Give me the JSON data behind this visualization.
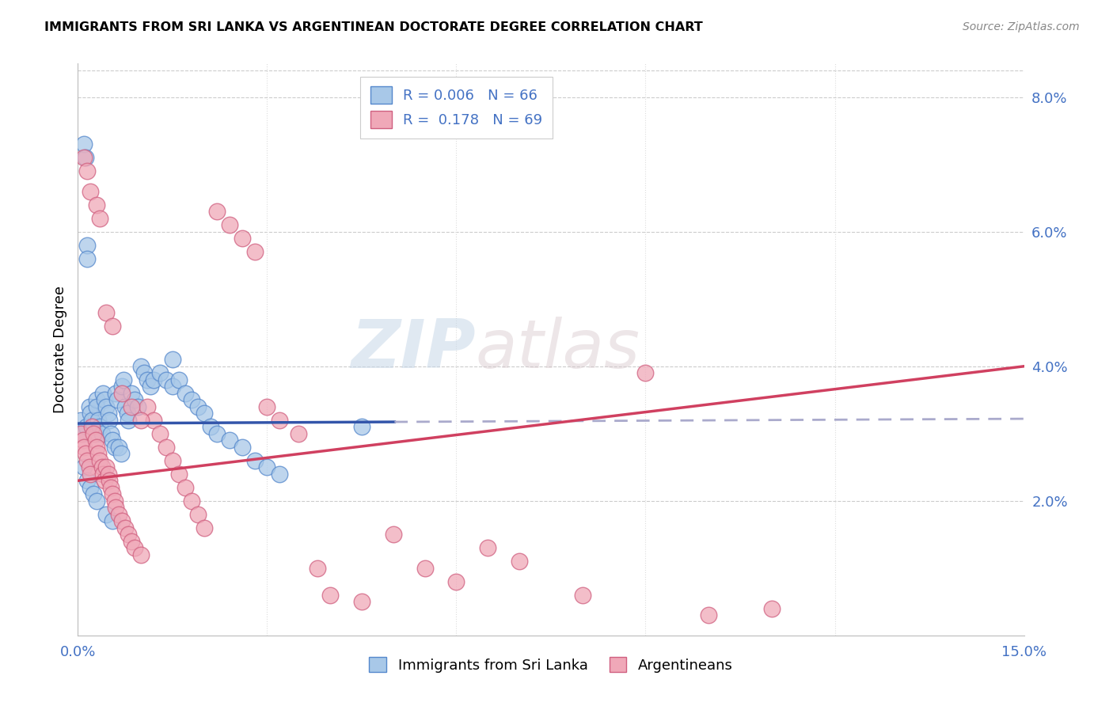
{
  "title": "IMMIGRANTS FROM SRI LANKA VS ARGENTINEAN DOCTORATE DEGREE CORRELATION CHART",
  "source": "Source: ZipAtlas.com",
  "ylabel": "Doctorate Degree",
  "xlim": [
    0.0,
    15.0
  ],
  "ylim": [
    0.0,
    8.5
  ],
  "blue_color": "#a8c8e8",
  "pink_color": "#f0a8b8",
  "blue_edge_color": "#5588cc",
  "pink_edge_color": "#d06080",
  "blue_line_color": "#3355aa",
  "pink_line_color": "#d04060",
  "blue_scatter_x": [
    0.05,
    0.08,
    0.1,
    0.12,
    0.13,
    0.15,
    0.15,
    0.18,
    0.2,
    0.22,
    0.25,
    0.28,
    0.3,
    0.3,
    0.32,
    0.35,
    0.38,
    0.4,
    0.42,
    0.45,
    0.48,
    0.5,
    0.52,
    0.55,
    0.58,
    0.6,
    0.62,
    0.65,
    0.68,
    0.7,
    0.72,
    0.75,
    0.78,
    0.8,
    0.85,
    0.9,
    0.95,
    1.0,
    1.05,
    1.1,
    1.15,
    1.2,
    1.3,
    1.4,
    1.5,
    1.6,
    1.7,
    1.8,
    1.9,
    2.0,
    2.1,
    2.2,
    2.4,
    2.6,
    2.8,
    3.0,
    3.2,
    0.1,
    0.15,
    0.2,
    0.25,
    0.3,
    0.45,
    0.55,
    1.5,
    4.5
  ],
  "blue_scatter_y": [
    3.2,
    3.0,
    7.3,
    7.1,
    3.1,
    5.8,
    5.6,
    3.4,
    3.3,
    3.2,
    3.1,
    3.0,
    3.5,
    3.4,
    3.2,
    3.1,
    3.0,
    3.6,
    3.5,
    3.4,
    3.3,
    3.2,
    3.0,
    2.9,
    2.8,
    3.6,
    3.5,
    2.8,
    2.7,
    3.7,
    3.8,
    3.4,
    3.3,
    3.2,
    3.6,
    3.5,
    3.4,
    4.0,
    3.9,
    3.8,
    3.7,
    3.8,
    3.9,
    3.8,
    3.7,
    3.8,
    3.6,
    3.5,
    3.4,
    3.3,
    3.1,
    3.0,
    2.9,
    2.8,
    2.6,
    2.5,
    2.4,
    2.5,
    2.3,
    2.2,
    2.1,
    2.0,
    1.8,
    1.7,
    4.1,
    3.1
  ],
  "pink_scatter_x": [
    0.05,
    0.08,
    0.1,
    0.12,
    0.15,
    0.18,
    0.2,
    0.22,
    0.25,
    0.28,
    0.3,
    0.32,
    0.35,
    0.38,
    0.4,
    0.42,
    0.45,
    0.48,
    0.5,
    0.52,
    0.55,
    0.58,
    0.6,
    0.65,
    0.7,
    0.75,
    0.8,
    0.85,
    0.9,
    1.0,
    1.1,
    1.2,
    1.3,
    1.4,
    1.5,
    1.6,
    1.7,
    1.8,
    1.9,
    2.0,
    2.2,
    2.4,
    2.6,
    2.8,
    3.0,
    3.2,
    3.5,
    3.8,
    4.0,
    4.5,
    5.0,
    5.5,
    6.0,
    6.5,
    7.0,
    8.0,
    9.0,
    10.0,
    11.0,
    0.1,
    0.15,
    0.2,
    0.3,
    0.35,
    0.45,
    0.55,
    0.7,
    0.85,
    1.0
  ],
  "pink_scatter_y": [
    3.0,
    2.9,
    2.8,
    2.7,
    2.6,
    2.5,
    2.4,
    3.1,
    3.0,
    2.9,
    2.8,
    2.7,
    2.6,
    2.5,
    2.4,
    2.3,
    2.5,
    2.4,
    2.3,
    2.2,
    2.1,
    2.0,
    1.9,
    1.8,
    1.7,
    1.6,
    1.5,
    1.4,
    1.3,
    1.2,
    3.4,
    3.2,
    3.0,
    2.8,
    2.6,
    2.4,
    2.2,
    2.0,
    1.8,
    1.6,
    6.3,
    6.1,
    5.9,
    5.7,
    3.4,
    3.2,
    3.0,
    1.0,
    0.6,
    0.5,
    1.5,
    1.0,
    0.8,
    1.3,
    1.1,
    0.6,
    3.9,
    0.3,
    0.4,
    7.1,
    6.9,
    6.6,
    6.4,
    6.2,
    4.8,
    4.6,
    3.6,
    3.4,
    3.2
  ],
  "blue_line_x0": 0.0,
  "blue_line_x1": 15.0,
  "blue_line_y0": 3.15,
  "blue_line_y1": 3.22,
  "blue_line_solid_end": 5.0,
  "pink_line_x0": 0.0,
  "pink_line_x1": 15.0,
  "pink_line_y0": 2.3,
  "pink_line_y1": 4.0,
  "watermark_zip": "ZIP",
  "watermark_atlas": "atlas",
  "legend_r1_text": "R = 0.006",
  "legend_r1_n": "N = 66",
  "legend_r2_text": "R =  0.178",
  "legend_r2_n": "N = 69",
  "bottom_label1": "Immigrants from Sri Lanka",
  "bottom_label2": "Argentineans"
}
